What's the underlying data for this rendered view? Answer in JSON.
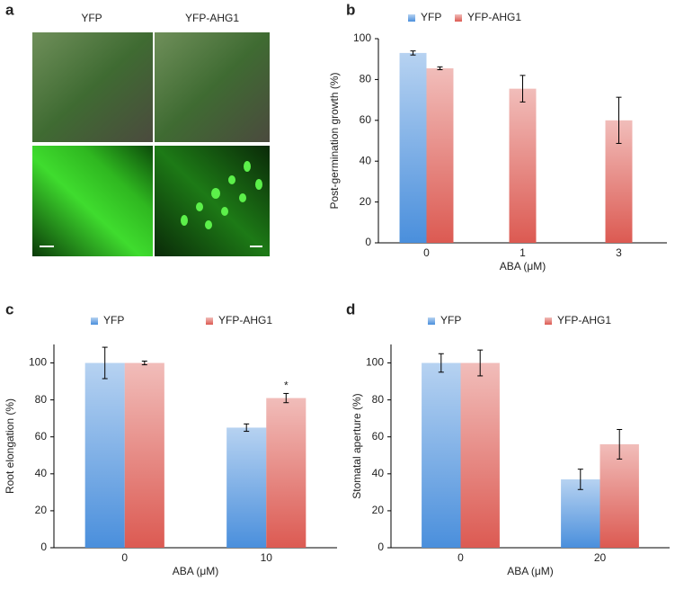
{
  "panel_a": {
    "label": "a",
    "titles": [
      "YFP",
      "YFP-AHG1"
    ]
  },
  "chart_data": [
    {
      "type": "bar",
      "label": "b",
      "xlabel": "ABA (μM)",
      "ylabel": "Post-germination growth (%)",
      "categories": [
        "0",
        "1",
        "3"
      ],
      "series": [
        {
          "name": "YFP",
          "color": "#4a8fdc",
          "values": [
            93,
            null,
            null
          ],
          "errors": [
            1,
            null,
            null
          ]
        },
        {
          "name": "YFP-AHG1",
          "color": "#dc5a52",
          "values": [
            85.5,
            75.5,
            60
          ],
          "errors": [
            0.7,
            6.5,
            11.3
          ]
        }
      ],
      "ylim": [
        0,
        100
      ],
      "yticks": [
        0,
        20,
        40,
        60,
        80,
        100
      ]
    },
    {
      "type": "bar",
      "label": "c",
      "xlabel": "ABA (μM)",
      "ylabel": "Root elongation (%)",
      "categories": [
        "0",
        "10"
      ],
      "series": [
        {
          "name": "YFP",
          "color": "#4a8fdc",
          "values": [
            100,
            65
          ],
          "errors": [
            8.5,
            2
          ]
        },
        {
          "name": "YFP-AHG1",
          "color": "#dc5a52",
          "values": [
            100,
            81
          ],
          "errors": [
            1,
            2.5
          ]
        }
      ],
      "annotation": "*",
      "ylim": [
        0,
        110
      ],
      "yticks": [
        0,
        20,
        40,
        60,
        80,
        100
      ]
    },
    {
      "type": "bar",
      "label": "d",
      "xlabel": "ABA (μM)",
      "ylabel": "Stomatal aperture (%)",
      "categories": [
        "0",
        "20"
      ],
      "series": [
        {
          "name": "YFP",
          "color": "#4a8fdc",
          "values": [
            100,
            37
          ],
          "errors": [
            5,
            5.5
          ]
        },
        {
          "name": "YFP-AHG1",
          "color": "#dc5a52",
          "values": [
            100,
            56
          ],
          "errors": [
            7,
            8
          ]
        }
      ],
      "ylim": [
        0,
        110
      ],
      "yticks": [
        0,
        20,
        40,
        60,
        80,
        100
      ]
    }
  ]
}
